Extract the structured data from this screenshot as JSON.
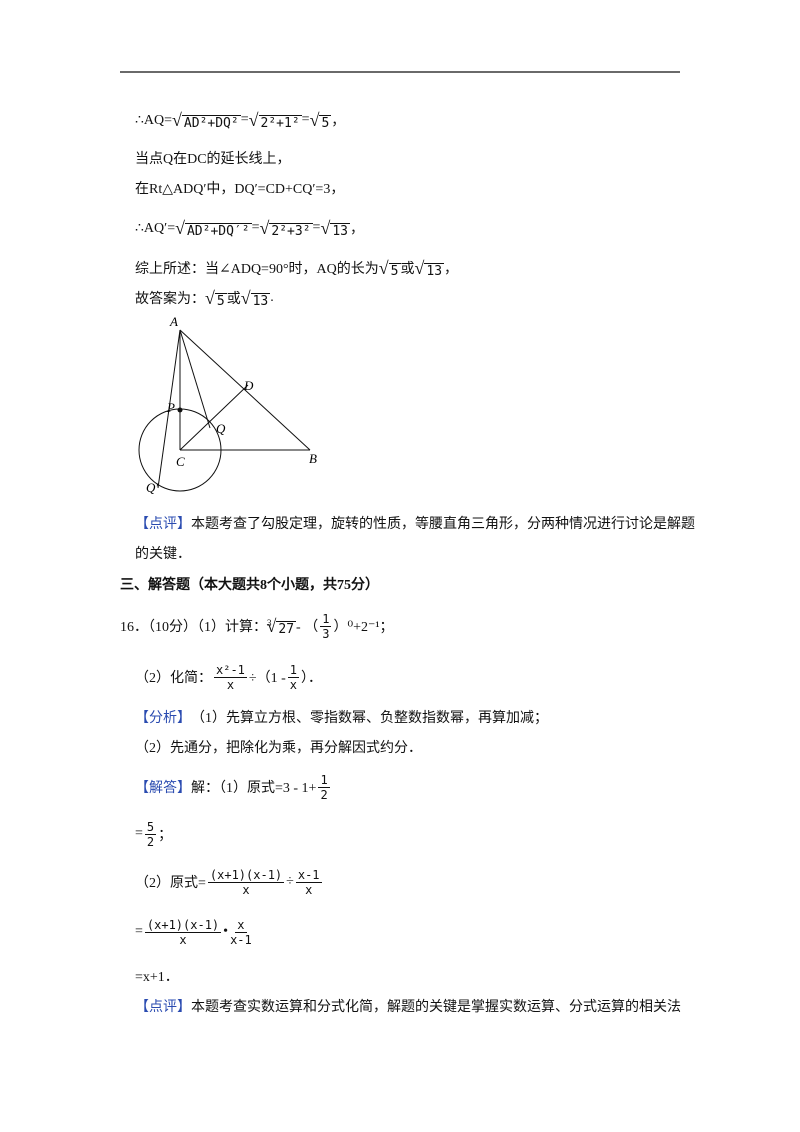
{
  "rule": true,
  "lines": [
    [
      "∴AQ=",
      {
        "sqrt": "AD²+DQ²"
      },
      "=",
      {
        "sqrt": "2²+1²"
      },
      "=",
      {
        "sqrt": "5"
      },
      "，"
    ],
    [
      "当点Q在DC的延长线上，"
    ],
    [
      "在Rt△ADQ′中，DQ′=CD+CQ′=3，"
    ],
    [
      "∴AQ′=",
      {
        "sqrt": "AD²+DQ′²"
      },
      "=",
      {
        "sqrt": "2²+3²"
      },
      "=",
      {
        "sqrt": "13"
      },
      "，"
    ],
    [
      "综上所述：当∠ADQ=90°时，AQ的长为",
      {
        "sqrt": "5"
      },
      "或",
      {
        "sqrt": "13"
      },
      "，"
    ],
    [
      "故答案为：",
      {
        "sqrt": "5"
      },
      "或",
      {
        "sqrt": "13"
      },
      "."
    ],
    [
      {
        "tag": "【点评】"
      },
      "本题考查了勾股定理，旋转的性质，等腰直角三角形，分两种情况进行讨论是解题"
    ],
    [
      "的关键．"
    ],
    [
      {
        "bold": "三、解答题（本大题共8个小题，共75分）"
      }
    ],
    [
      "16．（10分）（1）计算：",
      {
        "index": "3",
        "radicand": "27"
      },
      " - （",
      {
        "num": "1",
        "den": "3"
      },
      "）⁰+2⁻¹；"
    ],
    [
      "（2）化简：",
      {
        "num": "x²-1",
        "den": "x"
      },
      "÷（1 - ",
      {
        "num": "1",
        "den": "x"
      },
      "）．"
    ],
    [
      {
        "tag": "【分析】"
      },
      "（1）先算立方根、零指数幂、负整数指数幂，再算加减；"
    ],
    [
      "（2）先通分，把除化为乘，再分解因式约分．"
    ],
    [
      {
        "tag": "【解答】"
      },
      "解：（1）原式=3 - 1+",
      {
        "num": "1",
        "den": "2"
      }
    ],
    [
      "=",
      {
        "num": "5",
        "den": "2"
      },
      "；"
    ],
    [
      "（2）原式=",
      {
        "num": "(x+1)(x-1)",
        "den": "x"
      },
      "÷",
      {
        "num": "x-1",
        "den": "x"
      }
    ],
    [
      "=",
      {
        "num": "(x+1)(x-1)",
        "den": "x"
      },
      "•",
      {
        "num": "x",
        "den": "x-1"
      }
    ],
    [
      "=x+1．"
    ],
    [
      {
        "tag": "【点评】"
      },
      "本题考查实数运算和分式化简，解题的关键是掌握实数运算、分式运算的相关法"
    ]
  ],
  "figure": {
    "A": "A",
    "D": "D",
    "P": "P",
    "Q": "Q",
    "C": "C",
    "B": "B",
    "Q2": "Q′"
  }
}
